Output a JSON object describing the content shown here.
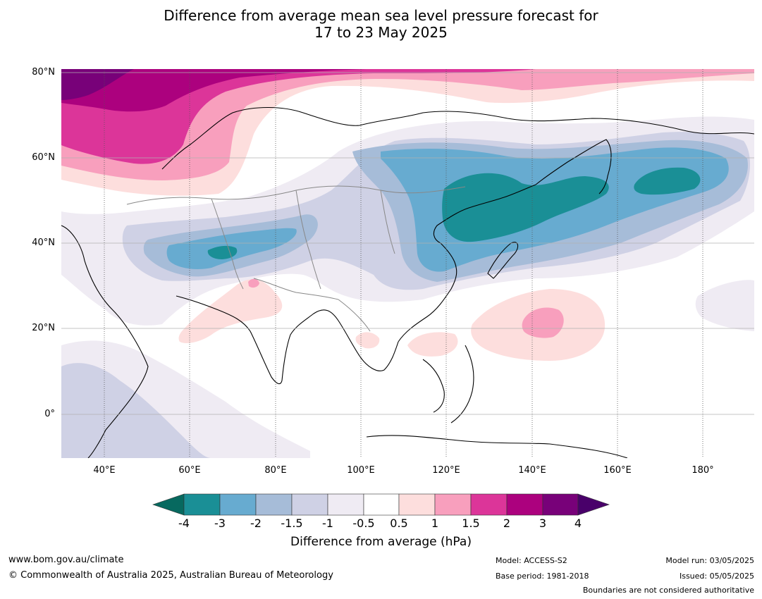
{
  "header": {
    "title_line1": "Difference from average mean sea level pressure forecast for",
    "title_line2": "17 to 23 May 2025"
  },
  "map": {
    "projection": "equirectangular",
    "lon_range": [
      30,
      192
    ],
    "lat_range": [
      -10,
      81
    ],
    "lat_labels": [
      "80°N",
      "60°N",
      "40°N",
      "20°N",
      "0°"
    ],
    "lat_values": [
      80,
      60,
      40,
      20,
      0
    ],
    "lon_labels": [
      "40°E",
      "60°E",
      "80°E",
      "100°E",
      "120°E",
      "140°E",
      "160°E",
      "180°"
    ],
    "lon_values": [
      40,
      60,
      80,
      100,
      120,
      140,
      160,
      180
    ],
    "regions": [
      {
        "level": 3.5,
        "name": "arctic-europe-high"
      },
      {
        "level": 2.5,
        "name": "scandinavia-high"
      },
      {
        "level": -2.5,
        "name": "mongolia-low"
      },
      {
        "level": -3.5,
        "name": "manchuria-low"
      },
      {
        "level": -3.5,
        "name": "kamchatka-low"
      },
      {
        "level": -2.5,
        "name": "central-asia-low"
      },
      {
        "level": 0.75,
        "name": "pacific-high"
      },
      {
        "level": 1.25,
        "name": "pacific-high-core"
      }
    ]
  },
  "colorbar": {
    "ticks": [
      "-4",
      "-3",
      "-2",
      "-1.5",
      "-1",
      "-0.5",
      "0.5",
      "1",
      "1.5",
      "2",
      "3",
      "4"
    ],
    "colors": [
      "#1a8f96",
      "#67abd0",
      "#a6bcd8",
      "#cfd1e5",
      "#efebf3",
      "#ffffff",
      "#fddedd",
      "#f89fbd",
      "#dc3599",
      "#ac017e",
      "#780179"
    ],
    "under_color": "#07695f",
    "over_color": "#49006a",
    "label": "Difference from average (hPa)"
  },
  "footer": {
    "website": "www.bom.gov.au/climate",
    "copyright": "© Commonwealth of Australia 2025, Australian Bureau of Meteorology",
    "model": "Model: ACCESS-S2",
    "base_period": "Base period: 1981-2018",
    "model_run": "Model run: 03/05/2025",
    "issued": "Issued: 05/05/2025",
    "disclaimer": "Boundaries are not considered authoritative"
  }
}
